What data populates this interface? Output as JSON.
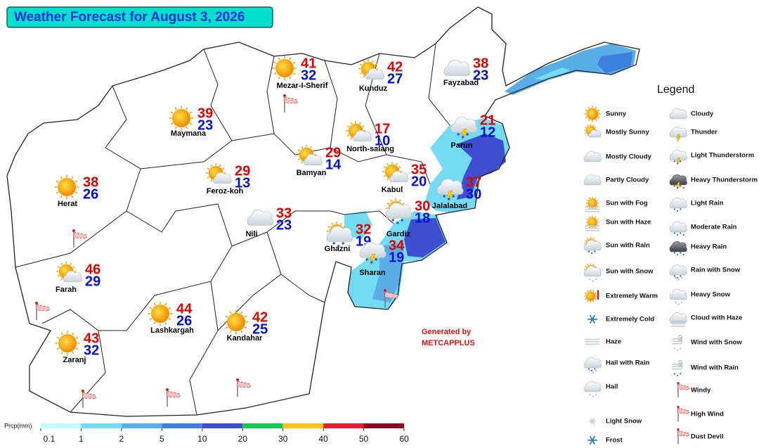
{
  "title": "Weather Forecast for August 3, 2026",
  "cities": [
    {
      "name": "Mezar-I-Sherif",
      "high": 41,
      "low": 32,
      "icon": "Sunny"
    },
    {
      "name": "Kunduz",
      "high": 42,
      "low": 27,
      "icon": "Mostly Sunny"
    },
    {
      "name": "Fayzabad",
      "high": 38,
      "low": 23,
      "icon": "Partly Cloudy"
    },
    {
      "name": "Maymana",
      "high": 39,
      "low": 23,
      "icon": "Sunny"
    },
    {
      "name": "North-salang",
      "high": 17,
      "low": 10,
      "icon": "Mostly Sunny"
    },
    {
      "name": "Parun",
      "high": 21,
      "low": 12,
      "icon": "Light Thunderstorm"
    },
    {
      "name": "Herat",
      "high": 38,
      "low": 26,
      "icon": "Sunny"
    },
    {
      "name": "Feroz-koh",
      "high": 29,
      "low": 13,
      "icon": "Mostly Sunny"
    },
    {
      "name": "Bamyan",
      "high": 29,
      "low": 14,
      "icon": "Mostly Sunny"
    },
    {
      "name": "Kabul",
      "high": 35,
      "low": 20,
      "icon": "Mostly Sunny"
    },
    {
      "name": "Jalalabad",
      "high": 37,
      "low": 30,
      "icon": "Light Thunderstorm"
    },
    {
      "name": "Nili",
      "high": 33,
      "low": 23,
      "icon": "Partly Cloudy"
    },
    {
      "name": "Gardiz",
      "high": 30,
      "low": 18,
      "icon": "Sun with Rain"
    },
    {
      "name": "Ghazni",
      "high": 32,
      "low": 19,
      "icon": "Sun with Rain"
    },
    {
      "name": "Sharan",
      "high": 34,
      "low": 19,
      "icon": "Light Thunderstorm"
    },
    {
      "name": "Farah",
      "high": 46,
      "low": 29,
      "icon": "Mostly Sunny"
    },
    {
      "name": "Lashkargah",
      "high": 44,
      "low": 26,
      "icon": "Sunny"
    },
    {
      "name": "Kandahar",
      "high": 42,
      "low": 25,
      "icon": "Sunny"
    },
    {
      "name": "Zaranj",
      "high": 43,
      "low": 32,
      "icon": "Sunny"
    }
  ],
  "legend": {
    "title": "Legend",
    "items": [
      "Sunny",
      "Mostly Sunny",
      "Mostly Cloudy",
      "Partly Cloudy",
      "Sun with Fog",
      "Sun with Haze",
      "Sun with Rain",
      "Sun with Snow",
      "Extremely Warm",
      "Extremely Cold",
      "Haze",
      "Hail with Rain",
      "Hail",
      "Light Snow",
      "Frost",
      "Cloudy",
      "Thunder",
      "Light Thunderstorm",
      "Heavy Thunderstorm",
      "Light Rain",
      "Moderate Rain",
      "Heavy Rain",
      "Rain with Snow",
      "Heavy Snow",
      "Cloud with Haze",
      "Wind with Snow",
      "Wind with Rain",
      "Windy",
      "High Wind",
      "Dust Devil"
    ]
  },
  "credit": [
    "Generated by",
    "METCAPPLUS"
  ],
  "scale": {
    "title": "Prcp(mm)",
    "ticks": [
      0.1,
      1,
      2,
      5,
      10,
      20,
      30,
      40,
      50,
      60
    ],
    "colors": [
      "#c4fbff",
      "#74dcf2",
      "#5aaee8",
      "#3c80dc",
      "#3c4fd0",
      "#16c850",
      "#ffc417",
      "#e61e32",
      "#8a0a1c"
    ]
  }
}
